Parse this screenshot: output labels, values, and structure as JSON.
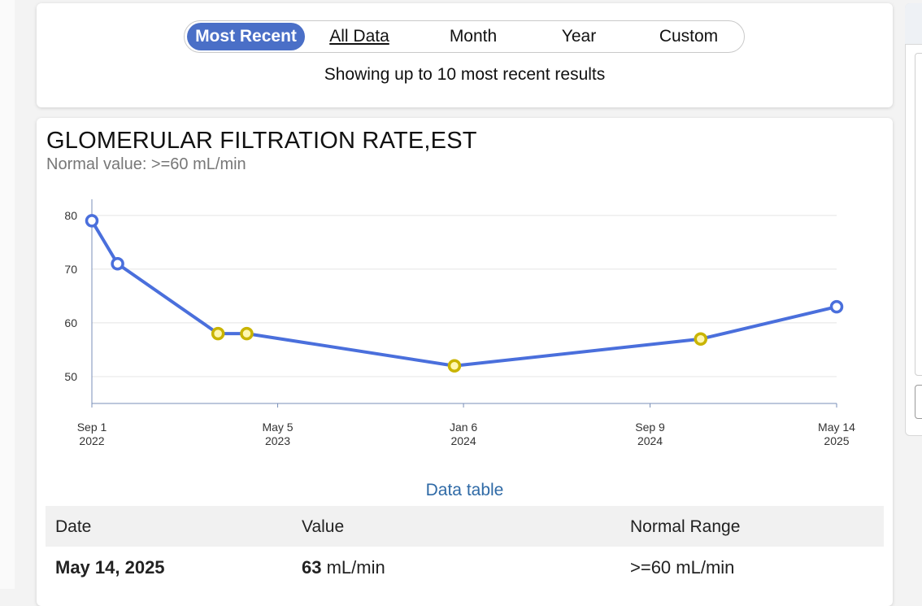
{
  "range_selector": {
    "options": [
      "Most Recent",
      "All Data",
      "Month",
      "Year",
      "Custom"
    ],
    "selected": "Most Recent",
    "showing_text": "Showing up to 10 most recent results"
  },
  "chart": {
    "title": "GLOMERULAR FILTRATION RATE,EST",
    "normal_value": "Normal value: >=60 mL/min",
    "data_table_link": "Data table",
    "colors": {
      "line": "#4a6fdc",
      "normal_point": "#4a6fdc",
      "abnormal_point": "#c9b400"
    }
  },
  "chart_data": {
    "type": "line",
    "xlabel": "",
    "ylabel": "",
    "ylim": [
      45,
      83
    ],
    "y_ticks": [
      "50",
      "60",
      "70",
      "80"
    ],
    "x_ticks": [
      {
        "date": "2022-09-01",
        "line1": "Sep 1",
        "line2": "2022"
      },
      {
        "date": "2023-05-05",
        "line1": "May 5",
        "line2": "2023"
      },
      {
        "date": "2024-01-06",
        "line1": "Jan 6",
        "line2": "2024"
      },
      {
        "date": "2024-09-09",
        "line1": "Sep 9",
        "line2": "2024"
      },
      {
        "date": "2025-05-14",
        "line1": "May 14",
        "line2": "2025"
      }
    ],
    "points": [
      {
        "date": "2022-09-01",
        "value": 79,
        "abnormal": false
      },
      {
        "date": "2022-10-05",
        "value": 71,
        "abnormal": false
      },
      {
        "date": "2023-02-15",
        "value": 58,
        "abnormal": true
      },
      {
        "date": "2023-03-25",
        "value": 58,
        "abnormal": true
      },
      {
        "date": "2023-12-25",
        "value": 52,
        "abnormal": true
      },
      {
        "date": "2024-11-15",
        "value": 57,
        "abnormal": true
      },
      {
        "date": "2025-05-14",
        "value": 63,
        "abnormal": false
      }
    ]
  },
  "table": {
    "headers": [
      "Date",
      "Value",
      "Normal Range"
    ],
    "rows": [
      {
        "date": "May 14, 2025",
        "value_num": "63",
        "value_unit": "mL/min",
        "range": ">=60 mL/min"
      }
    ]
  }
}
